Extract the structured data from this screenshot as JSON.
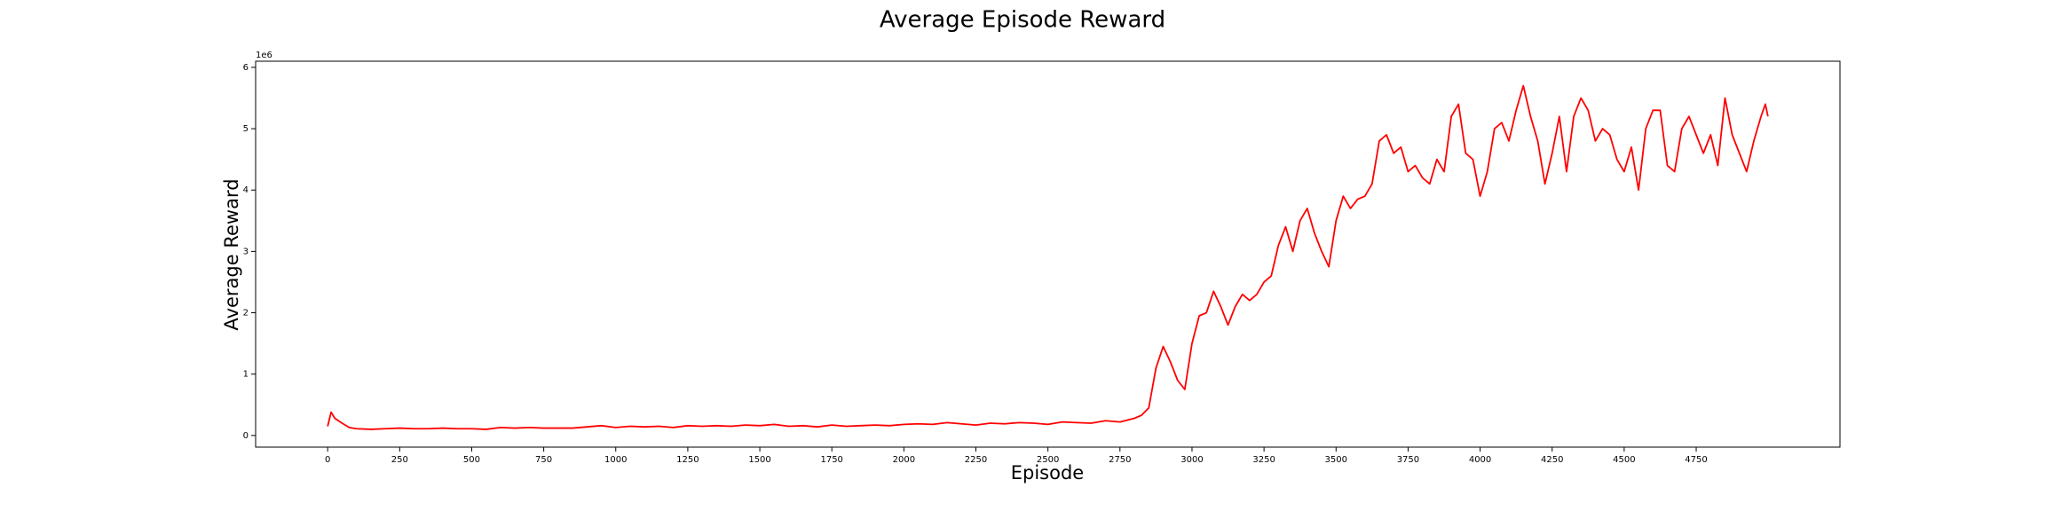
{
  "chart_data": {
    "type": "line",
    "title": "Average Episode Reward",
    "xlabel": "Episode",
    "ylabel": "Average Reward",
    "y_offset_label": "1e6",
    "x": [
      0,
      12,
      25,
      50,
      75,
      100,
      150,
      200,
      250,
      300,
      350,
      400,
      450,
      500,
      550,
      600,
      650,
      700,
      750,
      800,
      850,
      900,
      950,
      1000,
      1050,
      1100,
      1150,
      1200,
      1250,
      1300,
      1350,
      1400,
      1450,
      1500,
      1550,
      1600,
      1650,
      1700,
      1750,
      1800,
      1850,
      1900,
      1950,
      2000,
      2050,
      2100,
      2150,
      2200,
      2250,
      2300,
      2350,
      2400,
      2450,
      2500,
      2550,
      2600,
      2650,
      2700,
      2750,
      2800,
      2825,
      2850,
      2875,
      2900,
      2925,
      2950,
      2975,
      3000,
      3025,
      3050,
      3075,
      3100,
      3125,
      3150,
      3175,
      3200,
      3225,
      3250,
      3275,
      3300,
      3325,
      3350,
      3375,
      3400,
      3425,
      3450,
      3475,
      3500,
      3525,
      3550,
      3575,
      3600,
      3625,
      3650,
      3675,
      3700,
      3725,
      3750,
      3775,
      3800,
      3825,
      3850,
      3875,
      3900,
      3925,
      3950,
      3975,
      4000,
      4025,
      4050,
      4075,
      4100,
      4125,
      4150,
      4175,
      4200,
      4225,
      4250,
      4275,
      4300,
      4325,
      4350,
      4375,
      4400,
      4425,
      4450,
      4475,
      4500,
      4525,
      4550,
      4575,
      4600,
      4625,
      4650,
      4675,
      4700,
      4725,
      4750,
      4775,
      4800,
      4825,
      4850,
      4875,
      4900,
      4925,
      4950,
      4975,
      4990,
      4999
    ],
    "series": [
      {
        "name": "Average Reward",
        "color": "#ff0000",
        "values": [
          0.15,
          0.38,
          0.28,
          0.2,
          0.13,
          0.11,
          0.1,
          0.11,
          0.12,
          0.11,
          0.11,
          0.12,
          0.11,
          0.11,
          0.1,
          0.13,
          0.12,
          0.13,
          0.12,
          0.12,
          0.12,
          0.14,
          0.16,
          0.13,
          0.15,
          0.14,
          0.15,
          0.13,
          0.16,
          0.15,
          0.16,
          0.15,
          0.17,
          0.16,
          0.18,
          0.15,
          0.16,
          0.14,
          0.17,
          0.15,
          0.16,
          0.17,
          0.16,
          0.18,
          0.19,
          0.18,
          0.21,
          0.19,
          0.17,
          0.2,
          0.19,
          0.21,
          0.2,
          0.18,
          0.22,
          0.21,
          0.2,
          0.24,
          0.22,
          0.28,
          0.33,
          0.45,
          1.1,
          1.45,
          1.2,
          0.9,
          0.75,
          1.5,
          1.95,
          2.0,
          2.35,
          2.1,
          1.8,
          2.1,
          2.3,
          2.2,
          2.3,
          2.5,
          2.6,
          3.1,
          3.4,
          3.0,
          3.5,
          3.7,
          3.3,
          3.0,
          2.75,
          3.5,
          3.9,
          3.7,
          3.85,
          3.9,
          4.1,
          4.8,
          4.9,
          4.6,
          4.7,
          4.3,
          4.4,
          4.2,
          4.1,
          4.5,
          4.3,
          5.2,
          5.4,
          4.6,
          4.5,
          3.9,
          4.3,
          5.0,
          5.1,
          4.8,
          5.3,
          5.7,
          5.2,
          4.8,
          4.1,
          4.6,
          5.2,
          4.3,
          5.2,
          5.5,
          5.3,
          4.8,
          5.0,
          4.9,
          4.5,
          4.3,
          4.7,
          4.0,
          5.0,
          5.3,
          5.3,
          4.4,
          4.3,
          5.0,
          5.2,
          4.9,
          4.6,
          4.9,
          4.4,
          5.5,
          4.9,
          4.6,
          4.3,
          4.8,
          5.2,
          5.4,
          5.2
        ]
      }
    ],
    "xlim": [
      -250,
      5249
    ],
    "xticks": [
      0,
      250,
      500,
      750,
      1000,
      1250,
      1500,
      1750,
      2000,
      2250,
      2500,
      2750,
      3000,
      3250,
      3500,
      3750,
      4000,
      4250,
      4500,
      4750
    ],
    "ylim": [
      -0.19,
      6.1
    ],
    "yticks": [
      0,
      1,
      2,
      3,
      4,
      5,
      6
    ]
  }
}
